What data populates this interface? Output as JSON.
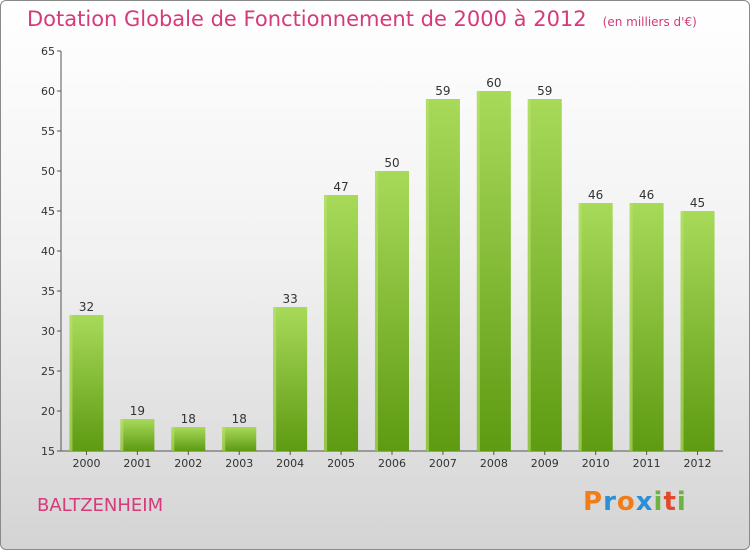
{
  "title": "Dotation Globale de Fonctionnement de 2000 à 2012",
  "subtitle": "(en milliers d'€)",
  "commune": "BALTZENHEIM",
  "logo": {
    "letters": [
      "P",
      "r",
      "o",
      "x",
      "i",
      "t",
      "i"
    ],
    "colors": [
      "#f07d19",
      "#2a8fd6",
      "#f07d19",
      "#2a8fd6",
      "#6db33f",
      "#e04a2b",
      "#6db33f"
    ]
  },
  "colors": {
    "accent": "#d63a7a",
    "bar": "#86c13a",
    "bar_dark": "#5e9a12",
    "bar_light": "#a8da5a"
  },
  "chart_data": {
    "type": "bar",
    "categories": [
      "2000",
      "2001",
      "2002",
      "2003",
      "2004",
      "2005",
      "2006",
      "2007",
      "2008",
      "2009",
      "2010",
      "2011",
      "2012"
    ],
    "values": [
      32,
      19,
      18,
      18,
      33,
      47,
      50,
      59,
      60,
      59,
      46,
      46,
      45
    ],
    "title": "Dotation Globale de Fonctionnement de 2000 à 2012",
    "subtitle": "(en milliers d'€)",
    "xlabel": "",
    "ylabel": "",
    "ylim": [
      15,
      65
    ],
    "yticks": [
      15,
      20,
      25,
      30,
      35,
      40,
      45,
      50,
      55,
      60,
      65
    ],
    "grid": false,
    "legend": "none"
  }
}
